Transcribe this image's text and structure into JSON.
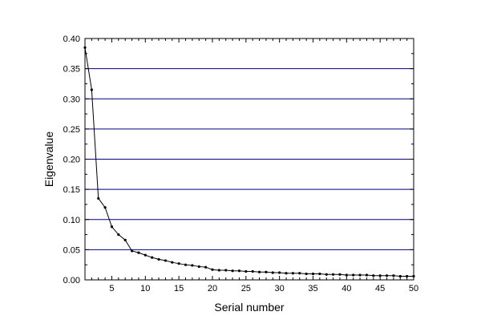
{
  "chart_data": {
    "type": "line",
    "title": "",
    "xlabel": "Serial number",
    "ylabel": "Eigenvalue",
    "xlim": [
      1,
      50
    ],
    "ylim": [
      0,
      0.4
    ],
    "x_ticks": [
      5,
      10,
      15,
      20,
      25,
      30,
      35,
      40,
      45,
      50
    ],
    "y_ticks": [
      0.0,
      0.05,
      0.1,
      0.15,
      0.2,
      0.25,
      0.3,
      0.35,
      0.4
    ],
    "x_tick_labels": [
      "5",
      "10",
      "15",
      "20",
      "25",
      "30",
      "35",
      "40",
      "45",
      "50"
    ],
    "y_tick_labels": [
      "0.00",
      "0.05",
      "0.10",
      "0.15",
      "0.20",
      "0.25",
      "0.30",
      "0.35",
      "0.40"
    ],
    "grid": "horizontal",
    "series": [
      {
        "x": [
          1,
          2,
          3,
          4,
          5,
          6,
          7,
          8,
          9,
          10,
          11,
          12,
          13,
          14,
          15,
          16,
          17,
          18,
          19,
          20,
          21,
          22,
          23,
          24,
          25,
          26,
          27,
          28,
          29,
          30,
          31,
          32,
          33,
          34,
          35,
          36,
          37,
          38,
          39,
          40,
          41,
          42,
          43,
          44,
          45,
          46,
          47,
          48,
          49,
          50
        ],
        "values": [
          0.385,
          0.315,
          0.135,
          0.12,
          0.088,
          0.075,
          0.066,
          0.048,
          0.045,
          0.041,
          0.037,
          0.034,
          0.032,
          0.029,
          0.027,
          0.025,
          0.024,
          0.022,
          0.021,
          0.017,
          0.016,
          0.016,
          0.015,
          0.015,
          0.014,
          0.014,
          0.013,
          0.013,
          0.012,
          0.012,
          0.011,
          0.011,
          0.011,
          0.01,
          0.01,
          0.01,
          0.009,
          0.009,
          0.009,
          0.008,
          0.008,
          0.008,
          0.008,
          0.007,
          0.007,
          0.007,
          0.007,
          0.006,
          0.006,
          0.006
        ]
      }
    ],
    "colors": {
      "gridline": "#000080",
      "line": "#000000",
      "marker": "#000000",
      "axis": "#000000"
    }
  }
}
